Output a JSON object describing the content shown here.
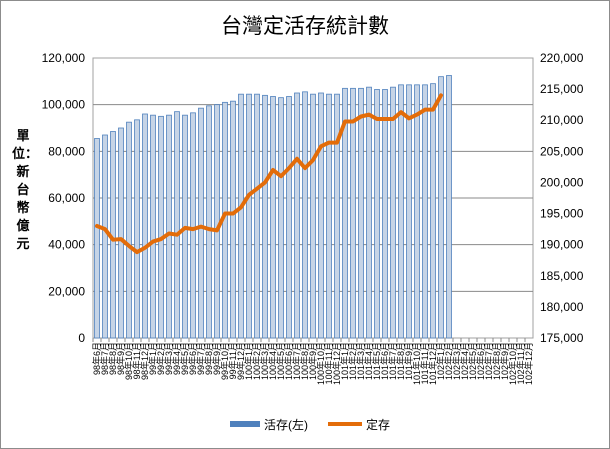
{
  "chart_data": {
    "type": "bar",
    "title": "台灣定活存統計數",
    "ylabel": "單位：新台幣億元",
    "xlabel": "",
    "ylim_left": [
      0,
      120000
    ],
    "yticks_left": [
      "0",
      "20,000",
      "40,000",
      "60,000",
      "80,000",
      "100,000",
      "120,000"
    ],
    "ylim_right": [
      175000,
      220000
    ],
    "yticks_right": [
      "175,000",
      "180,000",
      "185,000",
      "190,000",
      "195,000",
      "200,000",
      "205,000",
      "210,000",
      "215,000",
      "220,000"
    ],
    "grid": true,
    "legend_position": "bottom",
    "categories": [
      "98年6月",
      "98年7月",
      "98年8月",
      "98年9月",
      "98年10月",
      "98年11月",
      "98年12月",
      "99年1月",
      "99年2月",
      "99年3月",
      "99年4月",
      "99年5月",
      "99年6月",
      "99年7月",
      "99年8月",
      "99年9月",
      "99年10月",
      "99年11月",
      "99年12月",
      "100年1月",
      "100年2月",
      "100年3月",
      "100年4月",
      "100年5月",
      "100年6月",
      "100年7月",
      "100年8月",
      "100年9月",
      "100年10月",
      "100年11月",
      "100年12月",
      "101年1月",
      "101年2月",
      "101年3月",
      "101年4月",
      "101年5月",
      "101年6月",
      "101年7月",
      "101年8月",
      "101年9月",
      "101年10月",
      "101年11月",
      "101年12月",
      "102年1月",
      "102年2月",
      "102年3月",
      "102年4月",
      "102年5月",
      "102年6月",
      "102年7月",
      "102年8月",
      "102年9月",
      "102年10月",
      "102年11月",
      "102年12月"
    ],
    "series": [
      {
        "name": "活存(左)",
        "axis": "left",
        "type": "bar",
        "color": "#4f81bd",
        "values": [
          85500,
          87000,
          88500,
          90000,
          92500,
          93500,
          96000,
          95500,
          95000,
          95500,
          97000,
          95500,
          96500,
          98500,
          99500,
          100000,
          101000,
          101500,
          104500,
          104500,
          104500,
          104000,
          103500,
          103000,
          103500,
          105000,
          105500,
          104500,
          105000,
          104500,
          104500,
          107000,
          107000,
          107000,
          107500,
          106500,
          106500,
          107500,
          108500,
          108500,
          108500,
          108500,
          109000,
          112000,
          112500,
          null,
          null,
          null,
          null,
          null,
          null,
          null,
          null,
          null,
          null
        ]
      },
      {
        "name": "定存",
        "axis": "right",
        "type": "line",
        "color": "#e36c09",
        "values": [
          193000,
          192500,
          190800,
          190900,
          189800,
          188800,
          189500,
          190500,
          190900,
          191800,
          191600,
          192700,
          192500,
          192900,
          192500,
          192300,
          195000,
          195000,
          196000,
          198000,
          199000,
          200000,
          202000,
          201000,
          202300,
          203800,
          202300,
          203600,
          205800,
          206400,
          206400,
          209800,
          209800,
          210600,
          210900,
          210200,
          210200,
          210200,
          211300,
          210300,
          210900,
          211700,
          211700,
          214000,
          null,
          null,
          null,
          null,
          null,
          null,
          null,
          null,
          null,
          null,
          null
        ]
      }
    ]
  }
}
